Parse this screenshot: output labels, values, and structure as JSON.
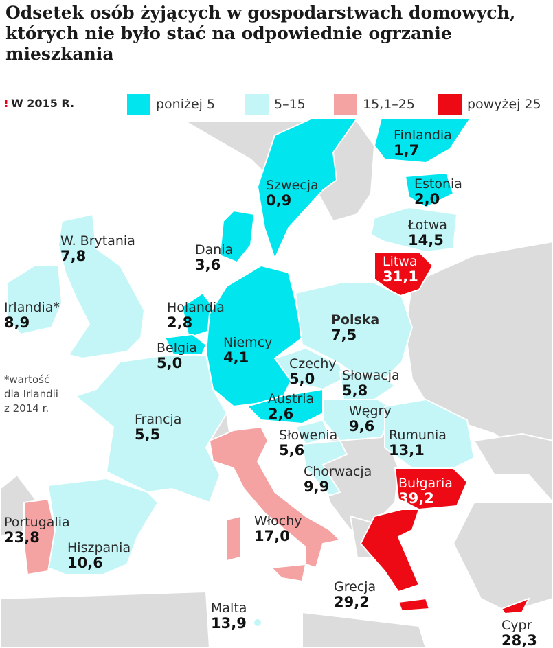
{
  "title": "Odsetek osób żyjących w gospodarstwach domowych, których nie było stać na odpowiednie ogrzanie mieszkania",
  "legend": {
    "year": "W 2015 R.",
    "items": [
      {
        "label": "poniżej 5",
        "color": "#00e5ee"
      },
      {
        "label": "5–15",
        "color": "#c4f6f7"
      },
      {
        "label": "15,1–25",
        "color": "#f4a2a2"
      },
      {
        "label": "powyżej 25",
        "color": "#ee0a14"
      }
    ]
  },
  "countries": {
    "finland": {
      "name": "Finlandia",
      "value": "1,7"
    },
    "sweden": {
      "name": "Szwecja",
      "value": "0,9"
    },
    "estonia": {
      "name": "Estonia",
      "value": "2,0"
    },
    "latvia": {
      "name": "Łotwa",
      "value": "14,5"
    },
    "lithuania": {
      "name": "Litwa",
      "value": "31,1"
    },
    "uk": {
      "name": "W. Brytania",
      "value": "7,8"
    },
    "denmark": {
      "name": "Dania",
      "value": "3,6"
    },
    "ireland": {
      "name": "Irlandia*",
      "value": "8,9"
    },
    "netherlands": {
      "name": "Holandia",
      "value": "2,8"
    },
    "poland": {
      "name": "Polska",
      "value": "7,5"
    },
    "belgium": {
      "name": "Belgia",
      "value": "5,0"
    },
    "germany": {
      "name": "Niemcy",
      "value": "4,1"
    },
    "czechia": {
      "name": "Czechy",
      "value": "5,0"
    },
    "slovakia": {
      "name": "Słowacja",
      "value": "5,8"
    },
    "austria": {
      "name": "Austria",
      "value": "2,6"
    },
    "hungary": {
      "name": "Węgry",
      "value": "9,6"
    },
    "france": {
      "name": "Francja",
      "value": "5,5"
    },
    "slovenia": {
      "name": "Słowenia",
      "value": "5,6"
    },
    "romania": {
      "name": "Rumunia",
      "value": "13,1"
    },
    "croatia": {
      "name": "Chorwacja",
      "value": "9,9"
    },
    "bulgaria": {
      "name": "Bułgaria",
      "value": "39,2"
    },
    "portugal": {
      "name": "Portugalia",
      "value": "23,8"
    },
    "italy": {
      "name": "Włochy",
      "value": "17,0"
    },
    "spain": {
      "name": "Hiszpania",
      "value": "10,6"
    },
    "greece": {
      "name": "Grecja",
      "value": "29,2"
    },
    "malta": {
      "name": "Malta",
      "value": "13,9"
    },
    "cyprus": {
      "name": "Cypr",
      "value": "28,3"
    }
  },
  "footnote": {
    "line1": "*wartość",
    "line2": "dla Irlandii",
    "line3": "z 2014 r."
  },
  "colors": {
    "sea": "#ffffff",
    "non_eu_land": "#dcdcdc",
    "border": "#ffffff"
  }
}
